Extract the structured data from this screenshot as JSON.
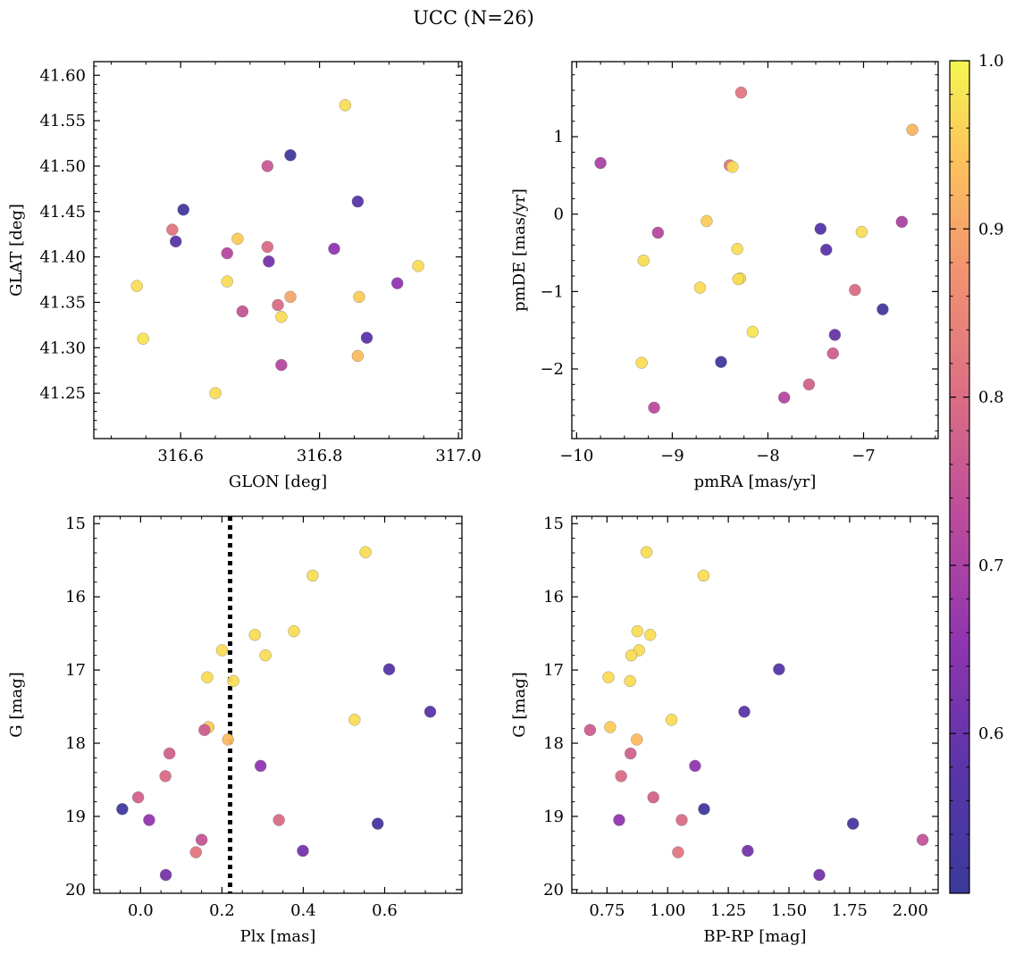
{
  "figure": {
    "title": "UCC (N=26)"
  },
  "colorbar": {
    "colormap": "plasma",
    "range": [
      0.505,
      1.0
    ],
    "ticks": [
      0.6,
      0.7,
      0.8,
      0.9,
      1.0
    ],
    "tick_labels": [
      "0.6",
      "0.7",
      "0.8",
      "0.9",
      "1.0"
    ]
  },
  "chart_data": [
    {
      "type": "scatter",
      "panel": "top-left",
      "title": "",
      "xlabel": "GLON [deg]",
      "ylabel": "GLAT [deg]",
      "xlim": [
        316.475,
        317.005
      ],
      "ylim": [
        41.2,
        41.615
      ],
      "y_inverted": false,
      "xticks": [
        316.6,
        316.8,
        317.0
      ],
      "xtick_labels": [
        "316.6",
        "316.8",
        "317.0"
      ],
      "yticks": [
        41.25,
        41.3,
        41.35,
        41.4,
        41.45,
        41.5,
        41.55,
        41.6
      ],
      "ytick_labels": [
        "41.25",
        "41.30",
        "41.35",
        "41.40",
        "41.45",
        "41.50",
        "41.55",
        "41.60"
      ],
      "vline": null,
      "points": [
        {
          "x": 316.837,
          "y": 41.567,
          "c": 0.97
        },
        {
          "x": 316.758,
          "y": 41.512,
          "c": 0.52
        },
        {
          "x": 316.725,
          "y": 41.5,
          "c": 0.76
        },
        {
          "x": 316.855,
          "y": 41.461,
          "c": 0.57
        },
        {
          "x": 316.604,
          "y": 41.452,
          "c": 0.53
        },
        {
          "x": 316.588,
          "y": 41.43,
          "c": 0.82
        },
        {
          "x": 316.682,
          "y": 41.42,
          "c": 0.95
        },
        {
          "x": 316.593,
          "y": 41.417,
          "c": 0.58
        },
        {
          "x": 316.725,
          "y": 41.411,
          "c": 0.8
        },
        {
          "x": 316.821,
          "y": 41.409,
          "c": 0.66
        },
        {
          "x": 316.667,
          "y": 41.404,
          "c": 0.72
        },
        {
          "x": 316.727,
          "y": 41.395,
          "c": 0.62
        },
        {
          "x": 316.942,
          "y": 41.39,
          "c": 0.97
        },
        {
          "x": 316.667,
          "y": 41.373,
          "c": 0.97
        },
        {
          "x": 316.912,
          "y": 41.371,
          "c": 0.66
        },
        {
          "x": 316.537,
          "y": 41.368,
          "c": 0.97
        },
        {
          "x": 316.758,
          "y": 41.356,
          "c": 0.9
        },
        {
          "x": 316.857,
          "y": 41.356,
          "c": 0.95
        },
        {
          "x": 316.74,
          "y": 41.347,
          "c": 0.8
        },
        {
          "x": 316.689,
          "y": 41.34,
          "c": 0.75
        },
        {
          "x": 316.745,
          "y": 41.334,
          "c": 0.97
        },
        {
          "x": 316.868,
          "y": 41.311,
          "c": 0.58
        },
        {
          "x": 316.546,
          "y": 41.31,
          "c": 0.98
        },
        {
          "x": 316.855,
          "y": 41.291,
          "c": 0.93
        },
        {
          "x": 316.745,
          "y": 41.281,
          "c": 0.72
        },
        {
          "x": 316.65,
          "y": 41.25,
          "c": 0.97
        }
      ]
    },
    {
      "type": "scatter",
      "panel": "top-right",
      "title": "",
      "xlabel": "pmRA [mas/yr]",
      "ylabel": "pmDE [mas/yr]",
      "xlim": [
        -10.05,
        -6.22
      ],
      "ylim": [
        -2.9,
        1.97
      ],
      "y_inverted": false,
      "xticks": [
        -10,
        -9,
        -8,
        -7
      ],
      "xtick_labels": [
        "−10",
        "−9",
        "−8",
        "−7"
      ],
      "yticks": [
        -2,
        -1,
        0,
        1
      ],
      "ytick_labels": [
        "−2",
        "−1",
        "0",
        "1"
      ],
      "vline": null,
      "points": [
        {
          "x": -8.28,
          "y": 1.57,
          "c": 0.82
        },
        {
          "x": -6.49,
          "y": 1.09,
          "c": 0.92
        },
        {
          "x": -9.75,
          "y": 0.66,
          "c": 0.7
        },
        {
          "x": -8.4,
          "y": 0.63,
          "c": 0.82
        },
        {
          "x": -8.37,
          "y": 0.61,
          "c": 0.97
        },
        {
          "x": -8.64,
          "y": -0.09,
          "c": 0.95
        },
        {
          "x": -6.6,
          "y": -0.1,
          "c": 0.7
        },
        {
          "x": -7.45,
          "y": -0.19,
          "c": 0.57
        },
        {
          "x": -9.15,
          "y": -0.24,
          "c": 0.72
        },
        {
          "x": -7.02,
          "y": -0.23,
          "c": 0.97
        },
        {
          "x": -8.32,
          "y": -0.45,
          "c": 0.97
        },
        {
          "x": -7.39,
          "y": -0.46,
          "c": 0.58
        },
        {
          "x": -9.3,
          "y": -0.6,
          "c": 0.97
        },
        {
          "x": -8.71,
          "y": -0.95,
          "c": 0.97
        },
        {
          "x": -7.09,
          "y": -0.98,
          "c": 0.8
        },
        {
          "x": -8.29,
          "y": -0.83,
          "c": 0.97
        },
        {
          "x": -8.31,
          "y": -0.84,
          "c": 0.97
        },
        {
          "x": -6.8,
          "y": -1.23,
          "c": 0.53
        },
        {
          "x": -8.16,
          "y": -1.52,
          "c": 0.98
        },
        {
          "x": -7.3,
          "y": -1.56,
          "c": 0.6
        },
        {
          "x": -8.49,
          "y": -1.91,
          "c": 0.52
        },
        {
          "x": -9.32,
          "y": -1.92,
          "c": 0.97
        },
        {
          "x": -7.32,
          "y": -1.8,
          "c": 0.77
        },
        {
          "x": -7.57,
          "y": -2.2,
          "c": 0.78
        },
        {
          "x": -7.83,
          "y": -2.37,
          "c": 0.72
        },
        {
          "x": -9.19,
          "y": -2.5,
          "c": 0.73
        }
      ]
    },
    {
      "type": "scatter",
      "panel": "bottom-left",
      "title": "",
      "xlabel": "Plx [mas]",
      "ylabel": "G [mag]",
      "xlim": [
        -0.115,
        0.79
      ],
      "ylim": [
        20.05,
        14.9
      ],
      "y_inverted": true,
      "xticks": [
        0.0,
        0.2,
        0.4,
        0.6
      ],
      "xtick_labels": [
        "0.0",
        "0.2",
        "0.4",
        "0.6"
      ],
      "yticks": [
        15,
        16,
        17,
        18,
        19,
        20
      ],
      "ytick_labels": [
        "15",
        "16",
        "17",
        "18",
        "19",
        "20"
      ],
      "vline": {
        "x": 0.22,
        "style": "dotted"
      },
      "points": [
        {
          "x": 0.553,
          "y": 15.39,
          "c": 0.97
        },
        {
          "x": 0.423,
          "y": 15.71,
          "c": 0.97
        },
        {
          "x": 0.281,
          "y": 16.52,
          "c": 0.97
        },
        {
          "x": 0.377,
          "y": 16.47,
          "c": 0.97
        },
        {
          "x": 0.2,
          "y": 16.73,
          "c": 0.97
        },
        {
          "x": 0.307,
          "y": 16.8,
          "c": 0.97
        },
        {
          "x": 0.611,
          "y": 16.99,
          "c": 0.57
        },
        {
          "x": 0.164,
          "y": 17.1,
          "c": 0.97
        },
        {
          "x": 0.228,
          "y": 17.15,
          "c": 0.97
        },
        {
          "x": 0.712,
          "y": 17.57,
          "c": 0.58
        },
        {
          "x": 0.526,
          "y": 17.68,
          "c": 0.97
        },
        {
          "x": 0.167,
          "y": 17.78,
          "c": 0.95
        },
        {
          "x": 0.157,
          "y": 17.82,
          "c": 0.77
        },
        {
          "x": 0.215,
          "y": 17.95,
          "c": 0.93
        },
        {
          "x": 0.071,
          "y": 18.14,
          "c": 0.78
        },
        {
          "x": 0.295,
          "y": 18.31,
          "c": 0.66
        },
        {
          "x": 0.061,
          "y": 18.45,
          "c": 0.8
        },
        {
          "x": -0.006,
          "y": 18.74,
          "c": 0.78
        },
        {
          "x": -0.045,
          "y": 18.9,
          "c": 0.52
        },
        {
          "x": 0.021,
          "y": 19.05,
          "c": 0.66
        },
        {
          "x": 0.34,
          "y": 19.05,
          "c": 0.8
        },
        {
          "x": 0.583,
          "y": 19.1,
          "c": 0.53
        },
        {
          "x": 0.15,
          "y": 19.32,
          "c": 0.75
        },
        {
          "x": 0.136,
          "y": 19.49,
          "c": 0.82
        },
        {
          "x": 0.399,
          "y": 19.47,
          "c": 0.62
        },
        {
          "x": 0.062,
          "y": 19.8,
          "c": 0.62
        }
      ]
    },
    {
      "type": "scatter",
      "panel": "bottom-right",
      "title": "",
      "xlabel": "BP-RP [mag]",
      "ylabel": "G [mag]",
      "xlim": [
        0.605,
        2.115
      ],
      "ylim": [
        20.05,
        14.9
      ],
      "y_inverted": true,
      "xticks": [
        0.75,
        1.0,
        1.25,
        1.5,
        1.75,
        2.0
      ],
      "xtick_labels": [
        "0.75",
        "1.00",
        "1.25",
        "1.50",
        "1.75",
        "2.00"
      ],
      "yticks": [
        15,
        16,
        17,
        18,
        19,
        20
      ],
      "ytick_labels": [
        "15",
        "16",
        "17",
        "18",
        "19",
        "20"
      ],
      "vline": null,
      "points": [
        {
          "x": 0.913,
          "y": 15.39,
          "c": 0.97
        },
        {
          "x": 1.148,
          "y": 15.71,
          "c": 0.97
        },
        {
          "x": 0.875,
          "y": 16.47,
          "c": 0.97
        },
        {
          "x": 0.928,
          "y": 16.52,
          "c": 0.97
        },
        {
          "x": 0.882,
          "y": 16.73,
          "c": 0.97
        },
        {
          "x": 0.85,
          "y": 16.8,
          "c": 0.97
        },
        {
          "x": 1.459,
          "y": 16.99,
          "c": 0.57
        },
        {
          "x": 0.756,
          "y": 17.1,
          "c": 0.97
        },
        {
          "x": 0.845,
          "y": 17.15,
          "c": 0.97
        },
        {
          "x": 1.316,
          "y": 17.57,
          "c": 0.58
        },
        {
          "x": 1.016,
          "y": 17.68,
          "c": 0.97
        },
        {
          "x": 0.763,
          "y": 17.78,
          "c": 0.95
        },
        {
          "x": 0.68,
          "y": 17.82,
          "c": 0.77
        },
        {
          "x": 0.873,
          "y": 17.95,
          "c": 0.93
        },
        {
          "x": 0.847,
          "y": 18.14,
          "c": 0.78
        },
        {
          "x": 1.113,
          "y": 18.31,
          "c": 0.66
        },
        {
          "x": 0.808,
          "y": 18.45,
          "c": 0.8
        },
        {
          "x": 0.941,
          "y": 18.74,
          "c": 0.78
        },
        {
          "x": 1.15,
          "y": 18.9,
          "c": 0.52
        },
        {
          "x": 0.8,
          "y": 19.05,
          "c": 0.66
        },
        {
          "x": 1.058,
          "y": 19.05,
          "c": 0.8
        },
        {
          "x": 1.764,
          "y": 19.1,
          "c": 0.53
        },
        {
          "x": 2.051,
          "y": 19.32,
          "c": 0.75
        },
        {
          "x": 1.043,
          "y": 19.49,
          "c": 0.82
        },
        {
          "x": 1.33,
          "y": 19.47,
          "c": 0.62
        },
        {
          "x": 1.625,
          "y": 19.8,
          "c": 0.62
        }
      ]
    }
  ]
}
